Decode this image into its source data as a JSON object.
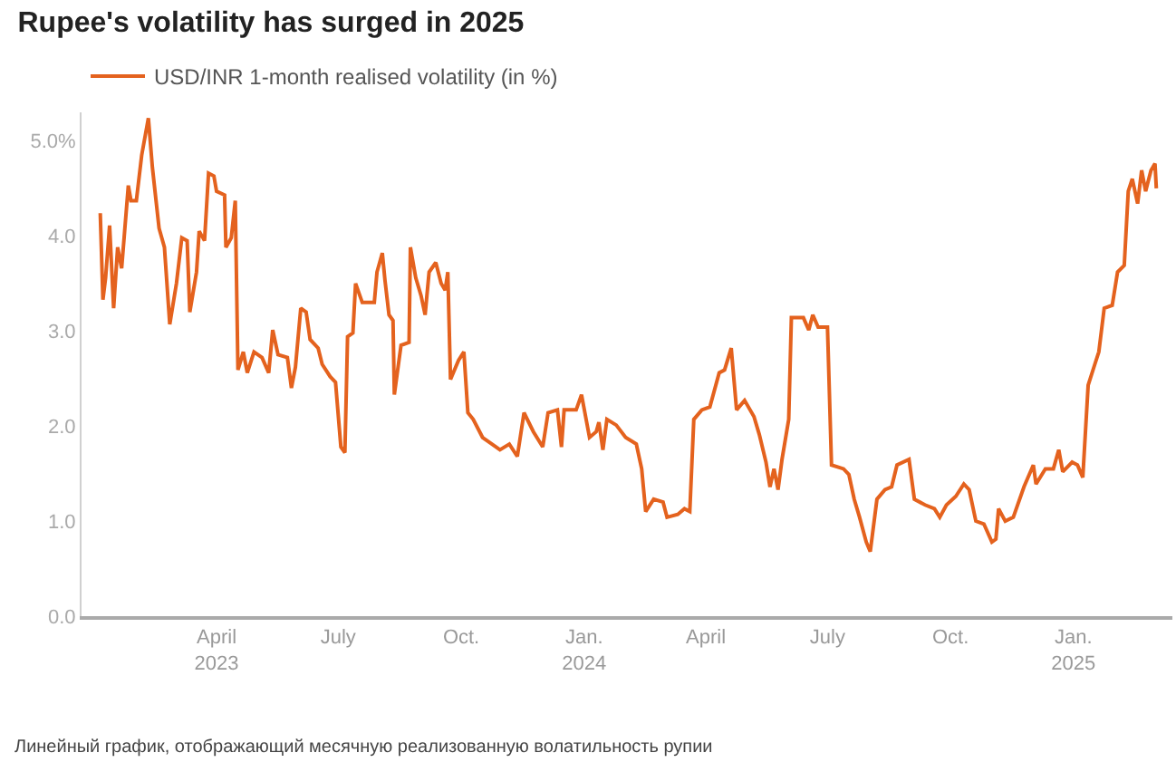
{
  "chart_data": {
    "type": "line",
    "title": "Rupee's volatility has surged in 2025",
    "annotations": [
      "Линейный график, отображающий месячную реализованную волатильность рупии"
    ],
    "x": [
      "2023-01-04",
      "2023-01-06",
      "2023-01-08",
      "2023-01-11",
      "2023-01-14",
      "2023-01-17",
      "2023-01-20",
      "2023-01-25",
      "2023-01-27",
      "2023-01-31",
      "2023-02-04",
      "2023-02-09",
      "2023-02-12",
      "2023-02-17",
      "2023-02-21",
      "2023-02-25",
      "2023-03-02",
      "2023-03-06",
      "2023-03-10",
      "2023-03-12",
      "2023-03-17",
      "2023-03-19",
      "2023-03-23",
      "2023-03-26",
      "2023-03-30",
      "2023-04-01",
      "2023-04-07",
      "2023-04-08",
      "2023-04-12",
      "2023-04-15",
      "2023-04-17",
      "2023-04-21",
      "2023-04-24",
      "2023-04-29",
      "2023-05-05",
      "2023-05-10",
      "2023-05-13",
      "2023-05-17",
      "2023-05-24",
      "2023-05-27",
      "2023-05-30",
      "2023-06-03",
      "2023-06-07",
      "2023-06-10",
      "2023-06-16",
      "2023-06-19",
      "2023-06-25",
      "2023-06-29",
      "2023-07-03",
      "2023-07-06",
      "2023-07-08",
      "2023-07-12",
      "2023-07-14",
      "2023-07-19",
      "2023-07-28",
      "2023-07-30",
      "2023-08-03",
      "2023-08-05",
      "2023-08-08",
      "2023-08-11",
      "2023-08-12",
      "2023-08-17",
      "2023-08-23",
      "2023-08-24",
      "2023-08-28",
      "2023-09-01",
      "2023-09-04",
      "2023-09-07",
      "2023-09-12",
      "2023-09-16",
      "2023-09-19",
      "2023-09-21",
      "2023-09-23",
      "2023-09-29",
      "2023-10-03",
      "2023-10-06",
      "2023-10-10",
      "2023-10-17",
      "2023-10-24",
      "2023-10-30",
      "2023-11-06",
      "2023-11-12",
      "2023-11-17",
      "2023-11-24",
      "2023-12-01",
      "2023-12-05",
      "2023-12-12",
      "2023-12-15",
      "2023-12-17",
      "2023-12-26",
      "2023-12-30",
      "2024-01-05",
      "2024-01-10",
      "2024-01-12",
      "2024-01-15",
      "2024-01-18",
      "2024-01-25",
      "2024-02-01",
      "2024-02-09",
      "2024-02-13",
      "2024-02-16",
      "2024-02-22",
      "2024-02-29",
      "2024-03-03",
      "2024-03-11",
      "2024-03-16",
      "2024-03-20",
      "2024-03-23",
      "2024-03-29",
      "2024-04-04",
      "2024-04-11",
      "2024-04-15",
      "2024-04-20",
      "2024-04-24",
      "2024-04-30",
      "2024-05-07",
      "2024-05-11",
      "2024-05-16",
      "2024-05-19",
      "2024-05-22",
      "2024-05-25",
      "2024-05-28",
      "2024-06-02",
      "2024-06-04",
      "2024-06-13",
      "2024-06-17",
      "2024-06-20",
      "2024-06-24",
      "2024-07-01",
      "2024-07-04",
      "2024-07-13",
      "2024-07-17",
      "2024-07-21",
      "2024-07-25",
      "2024-07-30",
      "2024-08-02",
      "2024-08-07",
      "2024-08-13",
      "2024-08-18",
      "2024-08-22",
      "2024-08-31",
      "2024-09-04",
      "2024-09-12",
      "2024-09-19",
      "2024-09-23",
      "2024-09-28",
      "2024-10-05",
      "2024-10-11",
      "2024-10-15",
      "2024-10-20",
      "2024-10-26",
      "2024-11-01",
      "2024-11-04",
      "2024-11-06",
      "2024-11-11",
      "2024-11-17",
      "2024-11-25",
      "2024-12-02",
      "2024-12-04",
      "2024-12-11",
      "2024-12-17",
      "2024-12-21",
      "2024-12-24",
      "2024-12-31",
      "2025-01-04",
      "2025-01-08",
      "2025-01-12",
      "2025-01-17",
      "2025-01-20",
      "2025-01-24",
      "2025-01-30",
      "2025-02-03",
      "2025-02-08",
      "2025-02-11",
      "2025-02-14",
      "2025-02-18",
      "2025-02-21",
      "2025-02-24",
      "2025-02-28",
      "2025-03-03",
      "2025-03-04"
    ],
    "series": [
      {
        "name": "USD/INR 1-month realised volatility (in %)",
        "color": "#e4621e",
        "values": [
          4.24,
          3.33,
          3.56,
          4.11,
          3.24,
          3.88,
          3.66,
          4.53,
          4.37,
          4.37,
          4.85,
          5.24,
          4.72,
          4.08,
          3.88,
          3.07,
          3.5,
          3.98,
          3.95,
          3.2,
          3.62,
          4.05,
          3.95,
          4.66,
          4.63,
          4.47,
          4.43,
          3.88,
          3.98,
          4.37,
          2.59,
          2.78,
          2.56,
          2.78,
          2.72,
          2.56,
          3.01,
          2.75,
          2.72,
          2.4,
          2.62,
          3.24,
          3.2,
          2.91,
          2.82,
          2.65,
          2.52,
          2.46,
          1.78,
          1.72,
          2.94,
          2.98,
          3.5,
          3.3,
          3.3,
          3.62,
          3.82,
          3.53,
          3.17,
          3.11,
          2.33,
          2.85,
          2.88,
          3.88,
          3.56,
          3.37,
          3.17,
          3.62,
          3.72,
          3.5,
          3.43,
          3.62,
          2.49,
          2.69,
          2.78,
          2.14,
          2.07,
          1.88,
          1.81,
          1.75,
          1.81,
          1.68,
          2.14,
          1.94,
          1.78,
          2.14,
          2.17,
          1.78,
          2.17,
          2.17,
          2.33,
          1.88,
          1.94,
          2.04,
          1.75,
          2.07,
          2.01,
          1.88,
          1.81,
          1.55,
          1.1,
          1.23,
          1.2,
          1.04,
          1.07,
          1.13,
          1.1,
          2.07,
          2.17,
          2.2,
          2.56,
          2.59,
          2.82,
          2.17,
          2.27,
          2.1,
          1.91,
          1.62,
          1.36,
          1.55,
          1.33,
          1.65,
          2.07,
          3.14,
          3.14,
          3.01,
          3.17,
          3.04,
          3.04,
          1.59,
          1.55,
          1.49,
          1.23,
          1.04,
          0.78,
          0.68,
          1.23,
          1.33,
          1.36,
          1.59,
          1.65,
          1.23,
          1.17,
          1.13,
          1.04,
          1.17,
          1.26,
          1.39,
          1.33,
          1.0,
          0.97,
          0.78,
          0.81,
          1.13,
          1.0,
          1.04,
          1.36,
          1.59,
          1.39,
          1.55,
          1.55,
          1.75,
          1.52,
          1.62,
          1.59,
          1.46,
          2.43,
          2.65,
          2.78,
          3.24,
          3.27,
          3.62,
          3.69,
          4.47,
          4.6,
          4.34,
          4.69,
          4.47,
          4.69,
          4.76,
          4.5
        ]
      }
    ],
    "xlim": [
      "2022-12-21",
      "2025-03-16"
    ],
    "xticks": [
      {
        "value": "2023-04-01",
        "label": "April\n2023"
      },
      {
        "value": "2023-07-01",
        "label": "July"
      },
      {
        "value": "2023-10-01",
        "label": "Oct."
      },
      {
        "value": "2024-01-01",
        "label": "Jan.\n2024"
      },
      {
        "value": "2024-04-01",
        "label": "April"
      },
      {
        "value": "2024-07-01",
        "label": "July"
      },
      {
        "value": "2024-10-01",
        "label": "Oct."
      },
      {
        "value": "2025-01-01",
        "label": "Jan.\n2025"
      }
    ],
    "ylim": [
      0,
      5.3
    ],
    "yticks": [
      {
        "value": 0,
        "label": "0.0"
      },
      {
        "value": 1,
        "label": "1.0"
      },
      {
        "value": 2,
        "label": "2.0"
      },
      {
        "value": 3,
        "label": "3.0"
      },
      {
        "value": 4,
        "label": "4.0"
      },
      {
        "value": 5,
        "label": "5.0%"
      }
    ],
    "grid": false,
    "legend": "top left",
    "marker": "none",
    "line_style": "solid"
  }
}
